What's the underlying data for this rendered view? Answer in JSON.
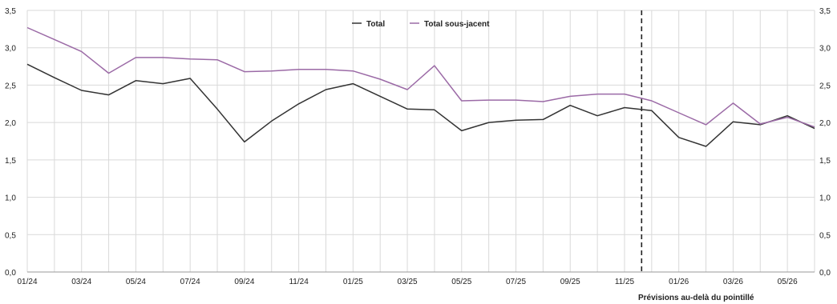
{
  "chart_data": {
    "type": "line",
    "x": [
      "01/24",
      "02/24",
      "03/24",
      "04/24",
      "05/24",
      "06/24",
      "07/24",
      "08/24",
      "09/24",
      "10/24",
      "11/24",
      "12/24",
      "01/25",
      "02/25",
      "03/25",
      "04/25",
      "05/25",
      "06/25",
      "07/25",
      "08/25",
      "09/25",
      "10/25",
      "11/25",
      "12/25",
      "01/26",
      "02/26",
      "03/26",
      "04/26",
      "05/26",
      "06/26"
    ],
    "x_tick_labels": [
      "01/24",
      "03/24",
      "05/24",
      "07/24",
      "09/24",
      "11/24",
      "01/25",
      "03/25",
      "05/25",
      "07/25",
      "09/25",
      "11/25",
      "01/26",
      "03/26",
      "05/26"
    ],
    "y_tick_labels": [
      "0,0",
      "0,5",
      "1,0",
      "1,5",
      "2,0",
      "2,5",
      "3,0",
      "3,5"
    ],
    "ylim": [
      0,
      3.5
    ],
    "grid": true,
    "legend_position": "top-center",
    "series": [
      {
        "name": "Total",
        "color": "#333333",
        "values": [
          2.78,
          2.6,
          2.43,
          2.37,
          2.56,
          2.52,
          2.59,
          2.18,
          1.74,
          2.02,
          2.25,
          2.44,
          2.52,
          2.35,
          2.18,
          2.17,
          1.89,
          2.0,
          2.03,
          2.04,
          2.23,
          2.09,
          2.2,
          2.16,
          1.8,
          1.68,
          2.01,
          1.97,
          2.09,
          1.92
        ]
      },
      {
        "name": "Total sous-jacent",
        "color": "#9b6aa6",
        "values": [
          3.27,
          3.11,
          2.95,
          2.66,
          2.87,
          2.87,
          2.85,
          2.84,
          2.68,
          2.69,
          2.71,
          2.71,
          2.69,
          2.58,
          2.44,
          2.76,
          2.29,
          2.3,
          2.3,
          2.28,
          2.35,
          2.38,
          2.38,
          2.29,
          2.13,
          1.97,
          2.26,
          1.98,
          2.07,
          1.94
        ]
      }
    ],
    "forecast_start": "12/25",
    "annotation": "Prévisions au-delà du pointillé"
  }
}
